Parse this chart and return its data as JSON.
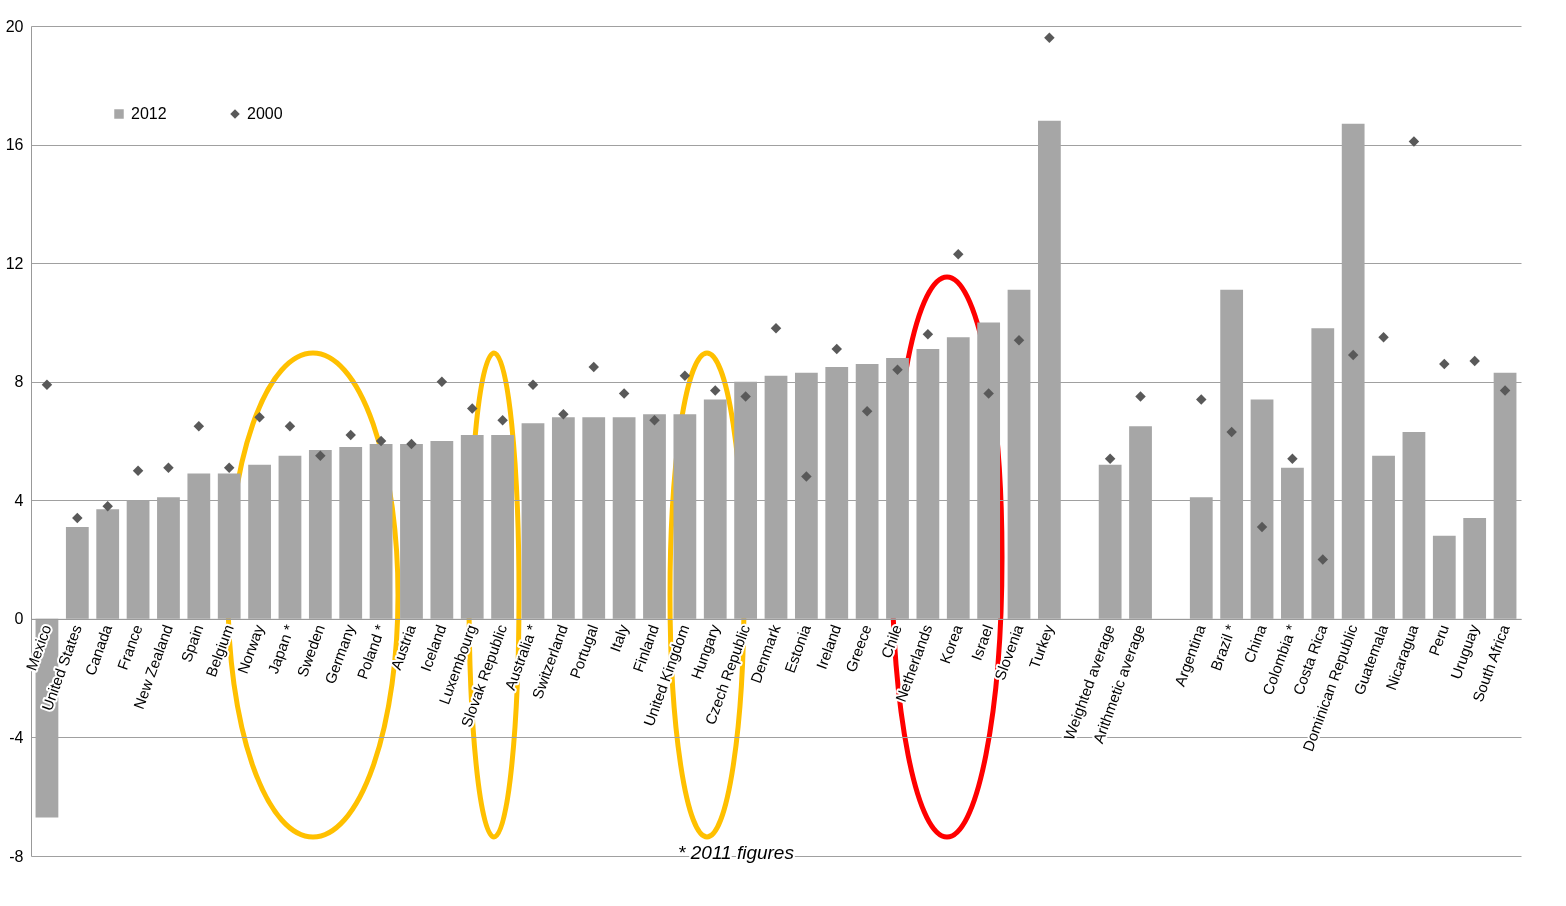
{
  "chart_data": {
    "type": "bar",
    "categories": [
      "Mexico",
      "United States",
      "Canada",
      "France",
      "New Zealand",
      "Spain",
      "Belgium",
      "Norway",
      "Japan *",
      "Sweden",
      "Germany",
      "Poland *",
      "Austria",
      "Iceland",
      "Luxembourg",
      "Slovak Republic",
      "Australia *",
      "Switzerland",
      "Portugal",
      "Italy",
      "Finland",
      "United Kingdom",
      "Hungary",
      "Czech Republic",
      "Denmark",
      "Estonia",
      "Ireland",
      "Greece",
      "Chile",
      "Netherlands",
      "Korea",
      "Israel",
      "Slovenia",
      "Turkey",
      null,
      "Weighted average",
      "Arithmetic average",
      null,
      "Argentina",
      "Brazil *",
      "China",
      "Colombia *",
      "Costa Rica",
      "Dominican Republic",
      "Guatemala",
      "Nicaragua",
      "Peru",
      "Uruguay",
      "South Africa"
    ],
    "series": [
      {
        "name": "2012",
        "color": "#a6a6a6",
        "values": [
          -6.7,
          3.1,
          3.7,
          4.0,
          4.1,
          4.9,
          4.9,
          5.2,
          5.5,
          5.7,
          5.8,
          5.9,
          5.9,
          6.0,
          6.2,
          6.2,
          6.6,
          6.8,
          6.8,
          6.8,
          6.9,
          6.9,
          7.4,
          8.0,
          8.2,
          8.3,
          8.5,
          8.6,
          8.8,
          9.1,
          9.5,
          10.0,
          11.1,
          16.8,
          null,
          5.2,
          6.5,
          null,
          4.1,
          11.1,
          7.4,
          5.1,
          9.8,
          16.7,
          5.5,
          6.3,
          2.8,
          3.4,
          8.3
        ]
      },
      {
        "name": "2000",
        "type": "scatter",
        "color": "#595959",
        "values": [
          7.9,
          3.4,
          3.8,
          5.0,
          5.1,
          6.5,
          5.1,
          6.8,
          6.5,
          5.5,
          6.2,
          6.0,
          5.9,
          8.0,
          7.1,
          6.7,
          7.9,
          6.9,
          8.5,
          7.6,
          6.7,
          8.2,
          7.7,
          7.5,
          9.8,
          4.8,
          9.1,
          7.0,
          8.4,
          9.6,
          12.3,
          7.6,
          9.4,
          19.6,
          null,
          5.4,
          7.5,
          null,
          7.4,
          6.3,
          3.1,
          5.4,
          2.0,
          8.9,
          9.5,
          16.1,
          8.6,
          8.7,
          7.7
        ]
      }
    ],
    "ylim": [
      -8,
      20
    ],
    "yticks": [
      -8,
      -4,
      0,
      4,
      8,
      12,
      16,
      20
    ],
    "grid": "y",
    "legend": "top left",
    "marker": "diamond",
    "annotations": [
      "* 2011 figures"
    ]
  }
}
